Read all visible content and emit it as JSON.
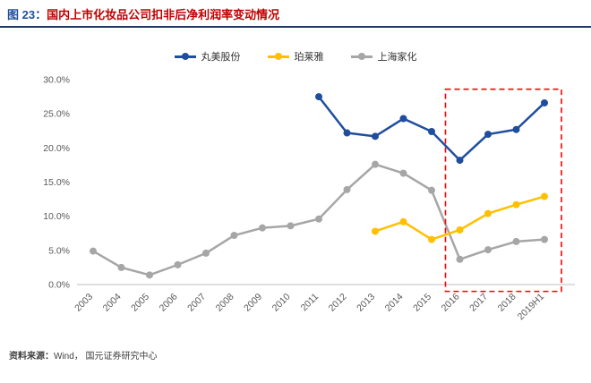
{
  "header": {
    "figure_label": "图 23：",
    "title": "国内上市化妆品公司扣非后净利润率变动情况"
  },
  "footer": {
    "source_label": "资料来源：",
    "source_text": "Wind， 国元证券研究中心"
  },
  "chart_data": {
    "type": "line",
    "title": "国内上市化妆品公司扣非后净利润率变动情况",
    "categories": [
      "2003",
      "2004",
      "2005",
      "2006",
      "2007",
      "2008",
      "2009",
      "2010",
      "2011",
      "2012",
      "2013",
      "2014",
      "2015",
      "2016",
      "2017",
      "2018",
      "2019H1"
    ],
    "series": [
      {
        "name": "丸美股份",
        "color": "#1F4E9C",
        "values": [
          null,
          null,
          null,
          null,
          null,
          null,
          null,
          null,
          27.5,
          22.2,
          21.7,
          24.3,
          22.4,
          18.2,
          22.0,
          22.7,
          26.6
        ]
      },
      {
        "name": "珀莱雅",
        "color": "#FFC000",
        "values": [
          null,
          null,
          null,
          null,
          null,
          null,
          null,
          null,
          null,
          null,
          7.8,
          9.2,
          6.6,
          8.0,
          10.4,
          11.7,
          12.9
        ]
      },
      {
        "name": "上海家化",
        "color": "#A6A6A6",
        "values": [
          4.9,
          2.5,
          1.4,
          2.9,
          4.6,
          7.2,
          8.3,
          8.6,
          9.6,
          13.9,
          17.6,
          16.3,
          13.8,
          3.7,
          5.1,
          6.3,
          6.6
        ]
      }
    ],
    "ylim": [
      0,
      30
    ],
    "ytick_values": [
      0,
      5,
      10,
      15,
      20,
      25,
      30
    ],
    "ytick_labels": [
      "0.0%",
      "5.0%",
      "10.0%",
      "15.0%",
      "20.0%",
      "25.0%",
      "30.0%"
    ],
    "xlabel": "",
    "ylabel": "",
    "grid": false,
    "legend_position": "top",
    "axis_color": "#BFBFBF",
    "highlight": {
      "start_category": "2016",
      "end_category": "2019H1",
      "y_top": 28.6,
      "y_bottom": -1,
      "color": "#FF0000"
    }
  }
}
